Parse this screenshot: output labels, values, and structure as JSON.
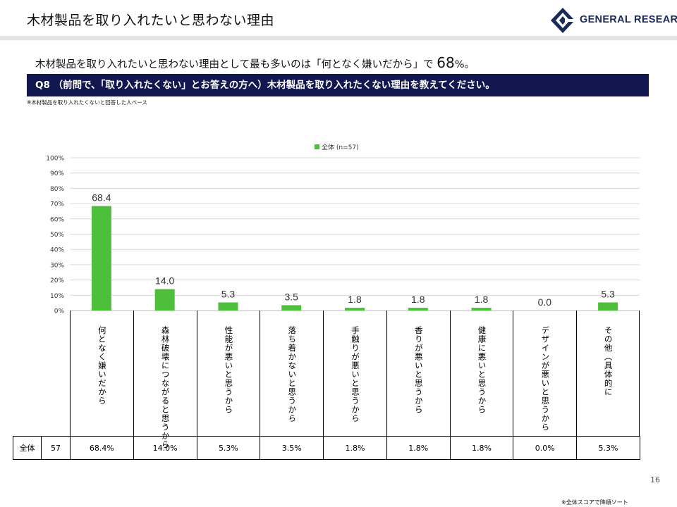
{
  "header": {
    "title": "木材製品を取り入れたいと思わない理由",
    "logo_text": "GENERAL RESEARCH"
  },
  "summary": {
    "text": "木材製品を取り入れたいと思わない理由として最も多いのは「何となく嫌いだから」で",
    "highlight": "68",
    "suffix": "%。"
  },
  "question": "Q8 （前問で、「取り入れたくない」とお答えの方へ）木材製品を取り入れたくない理由を教えてください。",
  "base_note": "※木材製品を取り入れたくないと回答した人ベース",
  "chart_data": {
    "type": "bar",
    "categories": [
      "何となく嫌いだから",
      "森林破壊につながると思うから",
      "性能が悪いと思うから",
      "落ち着かないと思うから",
      "手触りが悪いと思うから",
      "香りが悪いと思うから",
      "健康に悪いと思うから",
      "デザインが悪いと思うから",
      "その他（具体的に"
    ],
    "series": [
      {
        "name": "全体 (n=57)",
        "values": [
          68.4,
          14.0,
          5.3,
          3.5,
          1.8,
          1.8,
          1.8,
          0.0,
          5.3
        ]
      }
    ],
    "data_labels": [
      "68.4",
      "14.0",
      "5.3",
      "3.5",
      "1.8",
      "1.8",
      "1.8",
      "0.0",
      "5.3"
    ],
    "ylim": [
      0,
      100
    ],
    "yticks": [
      "0%",
      "10%",
      "20%",
      "30%",
      "40%",
      "50%",
      "60%",
      "70%",
      "80%",
      "90%",
      "100%"
    ],
    "grid": true,
    "legend": "top",
    "bar_color": "#4dbf3a"
  },
  "table": {
    "row_label": "全体",
    "n": "57",
    "values": [
      "68.4%",
      "14.0%",
      "5.3%",
      "3.5%",
      "1.8%",
      "1.8%",
      "1.8%",
      "0.0%",
      "5.3%"
    ]
  },
  "page_number": "16",
  "footnote": "※全体スコアで降順ソート"
}
